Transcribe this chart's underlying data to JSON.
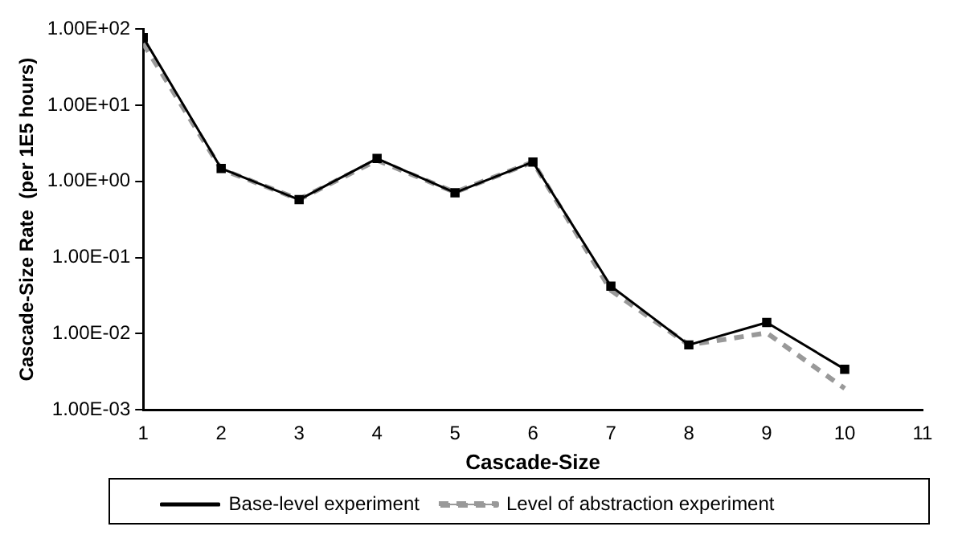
{
  "chart_data": {
    "type": "line",
    "xlabel": "Cascade-Size",
    "ylabel": "Cascade-Size Rate  (per 1E5 hours)",
    "x": [
      1,
      2,
      3,
      4,
      5,
      6,
      7,
      8,
      9,
      10
    ],
    "series": [
      {
        "name": "Level of abstraction experiment",
        "color": "#999999",
        "line_style": "dashed",
        "marker": "none",
        "values": [
          65,
          1.45,
          0.58,
          1.9,
          0.72,
          1.8,
          0.037,
          0.0071,
          0.0102,
          0.0019
        ]
      },
      {
        "name": "Base-level experiment",
        "color": "#000000",
        "line_style": "solid",
        "marker": "square",
        "values": [
          78,
          1.48,
          0.575,
          2.0,
          0.71,
          1.8,
          0.042,
          0.0071,
          0.014,
          0.0034
        ]
      }
    ],
    "log": "y",
    "xlim": [
      1,
      11
    ],
    "xticks": [
      1,
      2,
      3,
      4,
      5,
      6,
      7,
      8,
      9,
      10,
      11
    ],
    "ylim": [
      0.001,
      100
    ],
    "yticks": [
      {
        "value": 0.001,
        "label": "1.00E-03"
      },
      {
        "value": 0.01,
        "label": "1.00E-02"
      },
      {
        "value": 0.1,
        "label": "1.00E-01"
      },
      {
        "value": 1,
        "label": "1.00E+00"
      },
      {
        "value": 10,
        "label": "1.00E+01"
      },
      {
        "value": 100,
        "label": "1.00E+02"
      }
    ],
    "grid": false,
    "legend": "bottom"
  }
}
